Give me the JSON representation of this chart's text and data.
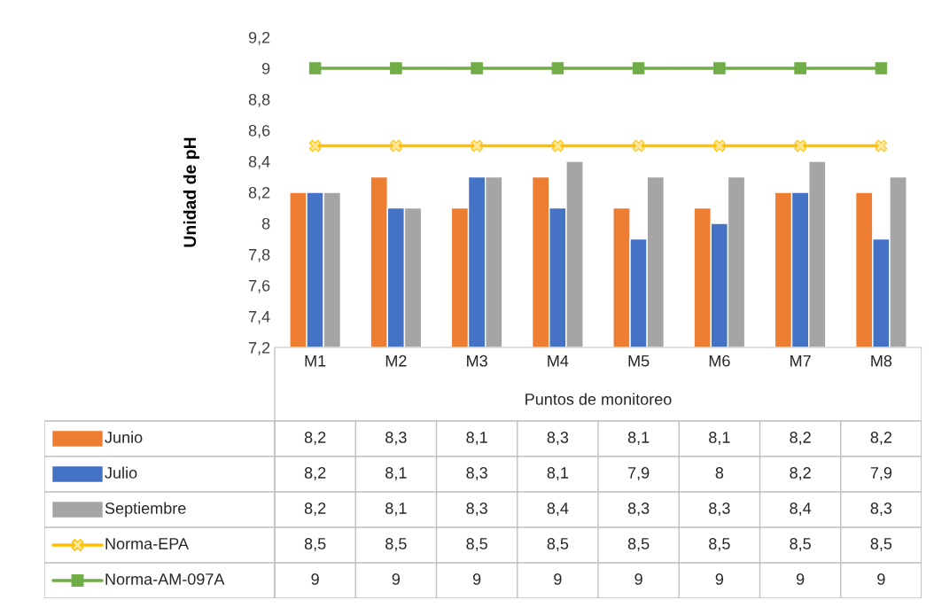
{
  "chart_data": {
    "type": "bar",
    "xlabel": "Puntos de monitoreo",
    "ylabel": "Unidad de pH",
    "categories": [
      "M1",
      "M2",
      "M3",
      "M4",
      "M5",
      "M6",
      "M7",
      "M8"
    ],
    "series": [
      {
        "name": "Junio",
        "color": "#ed7d31",
        "values": [
          8.2,
          8.3,
          8.1,
          8.3,
          8.1,
          8.1,
          8.2,
          8.2
        ],
        "value_labels": [
          "8,2",
          "8,3",
          "8,1",
          "8,3",
          "8,1",
          "8,1",
          "8,2",
          "8,2"
        ]
      },
      {
        "name": "Julio",
        "color": "#4472c4",
        "values": [
          8.2,
          8.1,
          8.3,
          8.1,
          7.9,
          8,
          8.2,
          7.9
        ],
        "value_labels": [
          "8,2",
          "8,1",
          "8,3",
          "8,1",
          "7,9",
          "8",
          "8,2",
          "7,9"
        ]
      },
      {
        "name": "Septiembre",
        "color": "#a5a5a5",
        "values": [
          8.2,
          8.1,
          8.3,
          8.4,
          8.3,
          8.3,
          8.4,
          8.3
        ],
        "value_labels": [
          "8,2",
          "8,1",
          "8,3",
          "8,4",
          "8,3",
          "8,3",
          "8,4",
          "8,3"
        ]
      },
      {
        "name": "Norma-EPA",
        "type": "line",
        "marker": "cross",
        "color": "#ffc000",
        "values": [
          8.5,
          8.5,
          8.5,
          8.5,
          8.5,
          8.5,
          8.5,
          8.5
        ],
        "value_labels": [
          "8,5",
          "8,5",
          "8,5",
          "8,5",
          "8,5",
          "8,5",
          "8,5",
          "8,5"
        ]
      },
      {
        "name": "Norma-AM-097A",
        "type": "line",
        "marker": "square",
        "color": "#70ad47",
        "values": [
          9,
          9,
          9,
          9,
          9,
          9,
          9,
          9
        ],
        "value_labels": [
          "9",
          "9",
          "9",
          "9",
          "9",
          "9",
          "9",
          "9"
        ]
      }
    ],
    "ylim": [
      7.2,
      9.2
    ],
    "yticks": [
      {
        "value": 7.2,
        "label": "7,2"
      },
      {
        "value": 7.4,
        "label": "7,4"
      },
      {
        "value": 7.6,
        "label": "7,6"
      },
      {
        "value": 7.8,
        "label": "7,8"
      },
      8,
      {
        "value": 8.2,
        "label": "8,2"
      },
      {
        "value": 8.4,
        "label": "8,4"
      },
      {
        "value": 8.6,
        "label": "8,6"
      },
      {
        "value": 8.8,
        "label": "8,8"
      },
      9,
      {
        "value": 9.2,
        "label": "9,2"
      }
    ],
    "grid": false,
    "legend": "bottom"
  }
}
